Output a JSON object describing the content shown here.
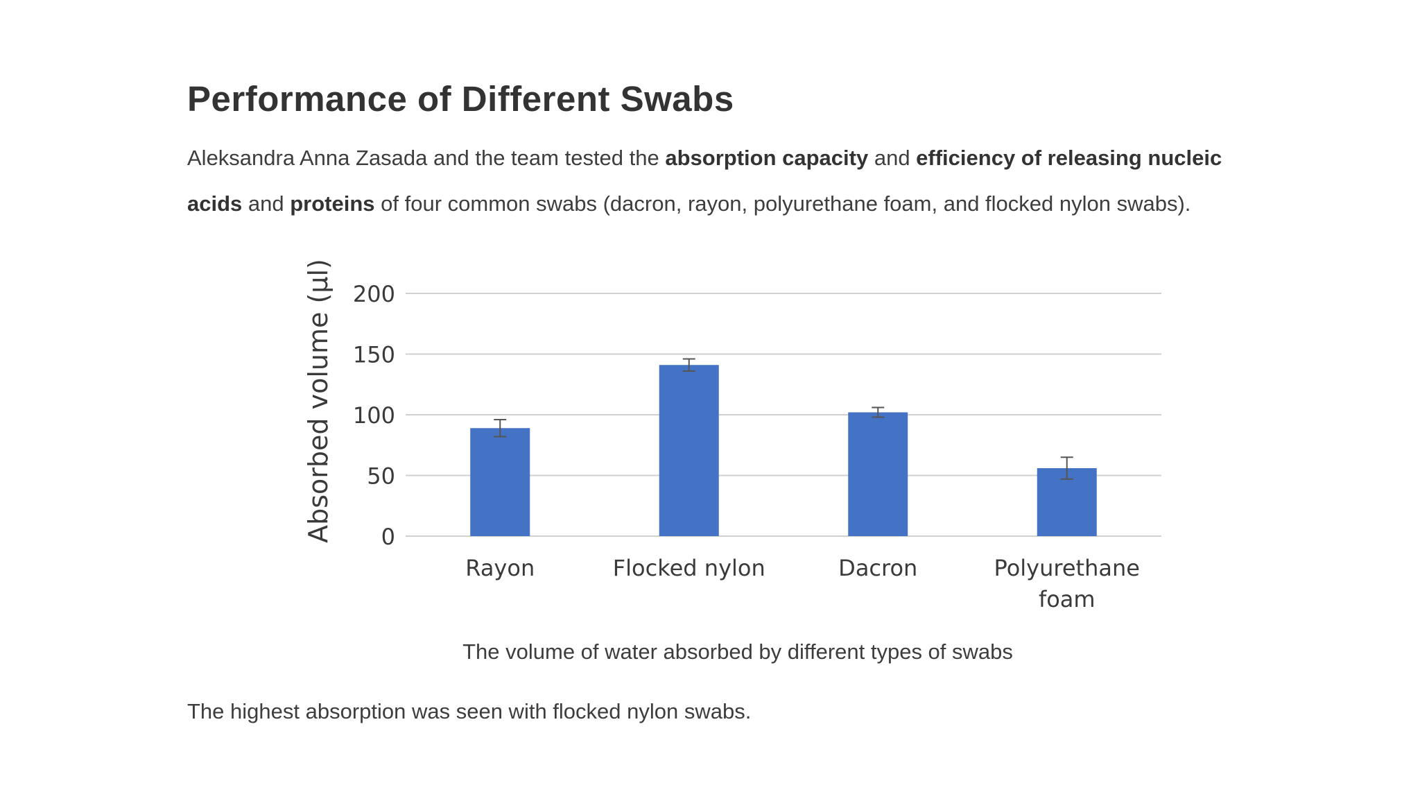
{
  "slide": {
    "title": "Performance of Different Swabs",
    "intro": {
      "p1": "Aleksandra Anna Zasada and the team tested the ",
      "b1": "absorption capacity",
      "p2": " and ",
      "b2": "efficiency of releasing nucleic acids",
      "p3": " and ",
      "b3": "proteins",
      "p4": " of four common swabs (dacron, rayon, polyurethane foam, and flocked nylon swabs)."
    },
    "caption": "The volume of water absorbed by different types of swabs",
    "conclusion": "The highest absorption was seen with flocked nylon swabs."
  },
  "chart_data": {
    "type": "bar",
    "categories": [
      "Rayon",
      "Flocked nylon",
      "Dacron",
      "Polyurethane foam"
    ],
    "category_lines": [
      [
        "Rayon"
      ],
      [
        "Flocked nylon"
      ],
      [
        "Dacron"
      ],
      [
        "Polyurethane",
        "foam"
      ]
    ],
    "values": [
      89,
      141,
      102,
      56
    ],
    "error": [
      7,
      5,
      4,
      9
    ],
    "ylabel": "Absorbed volume (µl)",
    "xlabel": "",
    "ylim": [
      0,
      200
    ],
    "yticks": [
      0,
      50,
      100,
      150,
      200
    ],
    "grid": true,
    "bar_color": "#4472c4",
    "grid_color": "#d0d0d0"
  }
}
